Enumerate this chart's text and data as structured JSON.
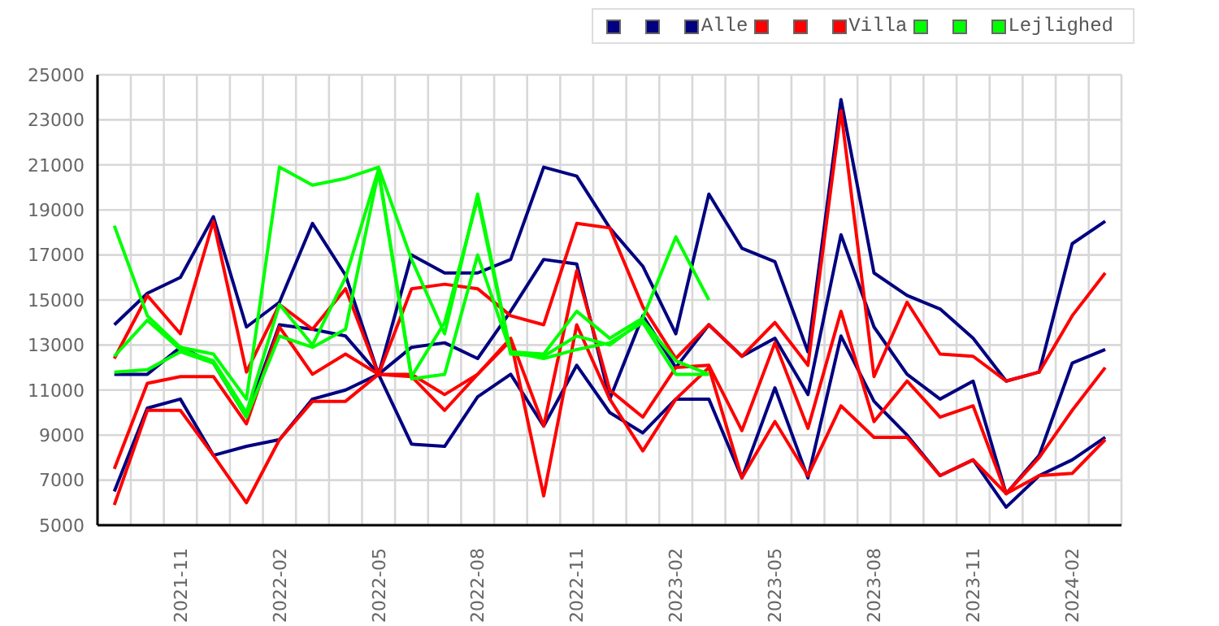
{
  "chart_data": {
    "type": "line",
    "x": [
      "2021-09",
      "2021-10",
      "2021-11",
      "2021-12",
      "2022-01",
      "2022-02",
      "2022-03",
      "2022-04",
      "2022-05",
      "2022-06",
      "2022-07",
      "2022-08",
      "2022-09",
      "2022-10",
      "2022-11",
      "2022-12",
      "2023-01",
      "2023-02",
      "2023-03",
      "2023-04",
      "2023-05",
      "2023-06",
      "2023-07",
      "2023-08",
      "2023-09",
      "2023-10",
      "2023-11",
      "2023-12",
      "2024-01",
      "2024-02",
      "2024-03"
    ],
    "series": [
      {
        "color": "#000080",
        "values": [
          13900,
          15300,
          16000,
          18700,
          13800,
          14900,
          18400,
          16100,
          11700,
          17000,
          16200,
          16200,
          16800,
          20900,
          20500,
          18200,
          16500,
          13500,
          19700,
          17300,
          16700,
          12700,
          23900,
          16200,
          15200,
          14600,
          13300,
          11400,
          11800,
          17500,
          18500
        ]
      },
      {
        "color": "#000080",
        "values": [
          11700,
          11700,
          12900,
          12200,
          9800,
          13900,
          13700,
          13400,
          11700,
          12900,
          13100,
          12400,
          14500,
          16800,
          16600,
          10600,
          14300,
          12000,
          13900,
          12500,
          13300,
          10800,
          17900,
          13800,
          11700,
          10600,
          11400,
          6400,
          8100,
          12200,
          12800
        ]
      },
      {
        "name": "Alle",
        "color": "#000080",
        "values": [
          6500,
          10200,
          10600,
          8100,
          8500,
          8800,
          10600,
          11000,
          11700,
          8600,
          8500,
          10700,
          11700,
          9400,
          12100,
          10000,
          9100,
          10600,
          10600,
          7100,
          11100,
          7100,
          13400,
          10500,
          9000,
          7200,
          7900,
          5800,
          7200,
          7900,
          8900
        ]
      },
      {
        "color": "#ff0000",
        "values": [
          12400,
          15200,
          13500,
          18500,
          11800,
          14800,
          13700,
          15500,
          11700,
          15500,
          15700,
          15500,
          14300,
          13900,
          18400,
          18200,
          14700,
          12400,
          13900,
          12500,
          14000,
          12100,
          23400,
          11600,
          14900,
          12600,
          12500,
          11400,
          11800,
          14300,
          16200
        ]
      },
      {
        "color": "#ff0000",
        "values": [
          7500,
          11300,
          11600,
          11600,
          9500,
          13800,
          11700,
          12600,
          11700,
          11700,
          10800,
          11700,
          13300,
          9400,
          16300,
          11000,
          9800,
          12000,
          12100,
          9200,
          13100,
          9300,
          14500,
          9600,
          11400,
          9800,
          10300,
          6400,
          8000,
          10100,
          12000
        ]
      },
      {
        "name": "Villa",
        "color": "#ff0000",
        "values": [
          5900,
          10100,
          10100,
          8100,
          6000,
          8800,
          10500,
          10500,
          11700,
          11600,
          10100,
          11700,
          13200,
          6300,
          13900,
          10600,
          8300,
          10600,
          12000,
          7100,
          9600,
          7200,
          10300,
          8900,
          8900,
          7200,
          7900,
          6400,
          7200,
          7300,
          8800
        ]
      },
      {
        "color": "#00ff00",
        "x": [
          "2021-09",
          "2021-10",
          "2021-11",
          "2021-12",
          "2022-01",
          "2022-02",
          "2022-03",
          "2022-04",
          "2022-05",
          "2022-06",
          "2022-07",
          "2022-08",
          "2022-09",
          "2022-10",
          "2022-11",
          "2022-12",
          "2023-01",
          "2023-02",
          "2023-03"
        ],
        "values": [
          18300,
          14300,
          12900,
          12600,
          10600,
          20900,
          20100,
          20400,
          20900,
          16800,
          13500,
          19700,
          12700,
          12600,
          14500,
          13300,
          14200,
          17800,
          15000
        ]
      },
      {
        "color": "#00ff00",
        "x": [
          "2021-09",
          "2021-10",
          "2021-11",
          "2021-12",
          "2022-01",
          "2022-02",
          "2022-03",
          "2022-04",
          "2022-05",
          "2022-06",
          "2022-07",
          "2022-08",
          "2022-09",
          "2022-10",
          "2022-11",
          "2022-12",
          "2023-01",
          "2023-02",
          "2023-03"
        ],
        "values": [
          12500,
          14100,
          12800,
          12300,
          10000,
          14800,
          13000,
          16000,
          20800,
          11600,
          14000,
          19500,
          12600,
          12500,
          13400,
          13000,
          14100,
          12300,
          11700
        ]
      },
      {
        "name": "Lejlighed",
        "color": "#00ff00",
        "x": [
          "2021-09",
          "2021-10",
          "2021-11",
          "2021-12",
          "2022-01",
          "2022-02",
          "2022-03",
          "2022-04",
          "2022-05",
          "2022-06",
          "2022-07",
          "2022-08",
          "2022-09",
          "2022-10",
          "2022-11",
          "2022-12",
          "2023-01",
          "2023-02",
          "2023-03"
        ],
        "values": [
          11800,
          11900,
          12700,
          12200,
          9800,
          13400,
          12900,
          13700,
          20700,
          11500,
          11700,
          17000,
          12700,
          12400,
          12800,
          13100,
          14000,
          11700,
          11700
        ]
      }
    ],
    "xlim": [
      "2021-08-16",
      "2024-03-16"
    ],
    "xticks": [
      "2021-11",
      "2022-02",
      "2022-05",
      "2022-08",
      "2022-11",
      "2023-02",
      "2023-05",
      "2023-08",
      "2023-11",
      "2024-02"
    ],
    "ylim": [
      5000,
      25000
    ],
    "yticks": [
      5000,
      7000,
      9000,
      11000,
      13000,
      15000,
      17000,
      19000,
      21000,
      23000,
      25000
    ],
    "grid": true,
    "legend": "top right"
  }
}
